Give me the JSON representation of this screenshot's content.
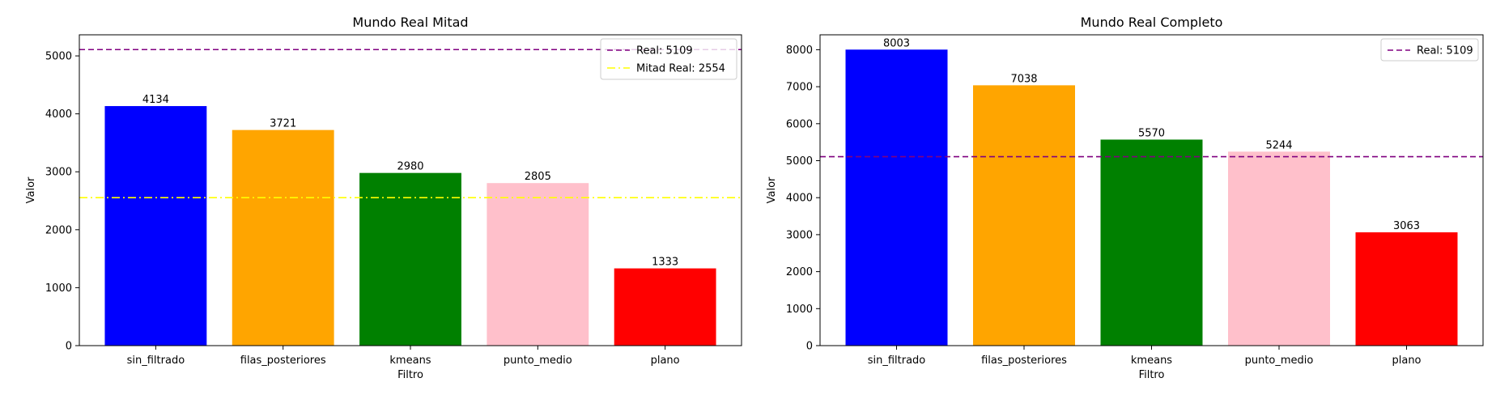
{
  "chart_data": [
    {
      "type": "bar",
      "title": "Mundo Real Mitad",
      "xlabel": "Filtro",
      "ylabel": "Valor",
      "categories": [
        "sin_filtrado",
        "filas_posteriores",
        "kmeans",
        "punto_medio",
        "plano"
      ],
      "values": [
        4134,
        3721,
        2980,
        2805,
        1333
      ],
      "colors": [
        "#0000ff",
        "#ffa500",
        "#008000",
        "#ffc0cb",
        "#ff0000"
      ],
      "ylim": [
        0,
        5364
      ],
      "yticks": [
        0,
        1000,
        2000,
        3000,
        4000,
        5000
      ],
      "grid": false,
      "legend_position": "top-right",
      "reference_lines": [
        {
          "label": "Real: 5109",
          "value": 5109,
          "color": "#800080",
          "style": "dashed"
        },
        {
          "label": "Mitad Real: 2554",
          "value": 2554,
          "color": "#ffff00",
          "style": "dashdot"
        }
      ]
    },
    {
      "type": "bar",
      "title": "Mundo Real Completo",
      "xlabel": "Filtro",
      "ylabel": "Valor",
      "categories": [
        "sin_filtrado",
        "filas_posteriores",
        "kmeans",
        "punto_medio",
        "plano"
      ],
      "values": [
        8003,
        7038,
        5570,
        5244,
        3063
      ],
      "colors": [
        "#0000ff",
        "#ffa500",
        "#008000",
        "#ffc0cb",
        "#ff0000"
      ],
      "ylim": [
        0,
        8403
      ],
      "yticks": [
        0,
        1000,
        2000,
        3000,
        4000,
        5000,
        6000,
        7000,
        8000
      ],
      "grid": false,
      "legend_position": "top-right",
      "reference_lines": [
        {
          "label": "Real: 5109",
          "value": 5109,
          "color": "#800080",
          "style": "dashed"
        }
      ]
    }
  ]
}
